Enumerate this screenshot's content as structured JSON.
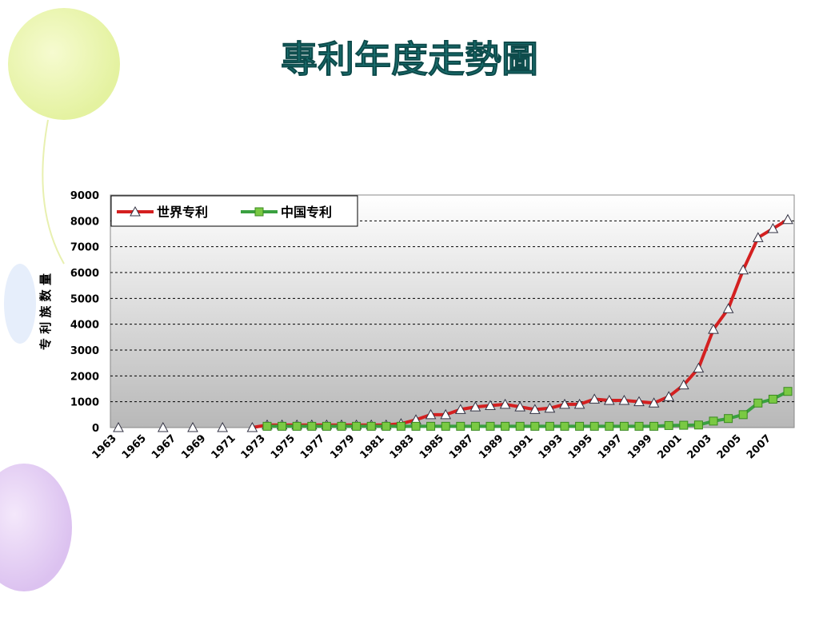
{
  "chart_data": {
    "type": "line",
    "title": "專利年度走勢圖",
    "y_label": "专 利 族 数 量",
    "categories": [
      "1963",
      null,
      "1965",
      null,
      "1967",
      null,
      "1969",
      null,
      "1971",
      null,
      "1973",
      null,
      "1975",
      null,
      "1977",
      null,
      "1979",
      null,
      "1981",
      null,
      "1983",
      null,
      "1985",
      null,
      "1987",
      null,
      "1989",
      null,
      "1991",
      null,
      "1993",
      null,
      "1995",
      null,
      "1997",
      null,
      "1999",
      null,
      "2001",
      null,
      "2003",
      null,
      "2005",
      null,
      "2007",
      null
    ],
    "series": [
      {
        "name": "世界专利",
        "color": "#d42020",
        "values": [
          0,
          null,
          null,
          0,
          null,
          0,
          null,
          0,
          null,
          0,
          100,
          100,
          100,
          100,
          100,
          100,
          100,
          100,
          100,
          150,
          300,
          500,
          500,
          700,
          800,
          850,
          900,
          800,
          700,
          750,
          900,
          900,
          1100,
          1050,
          1050,
          1000,
          950,
          1200,
          1650,
          2300,
          3800,
          4600,
          6100,
          7350,
          7700,
          8050
        ]
      },
      {
        "name": "中国专利",
        "color": "#3aa040",
        "values": [
          null,
          null,
          null,
          null,
          null,
          null,
          null,
          null,
          null,
          null,
          50,
          50,
          50,
          50,
          50,
          50,
          50,
          50,
          50,
          50,
          50,
          50,
          50,
          50,
          50,
          50,
          50,
          50,
          50,
          50,
          50,
          50,
          50,
          50,
          50,
          50,
          50,
          80,
          90,
          100,
          250,
          350,
          500,
          950,
          1100,
          1400
        ]
      }
    ],
    "ylim": [
      0,
      9000
    ],
    "yticks": [
      0,
      1000,
      2000,
      3000,
      4000,
      5000,
      6000,
      7000,
      8000,
      9000
    ],
    "grid": true,
    "legend": "top-left"
  }
}
